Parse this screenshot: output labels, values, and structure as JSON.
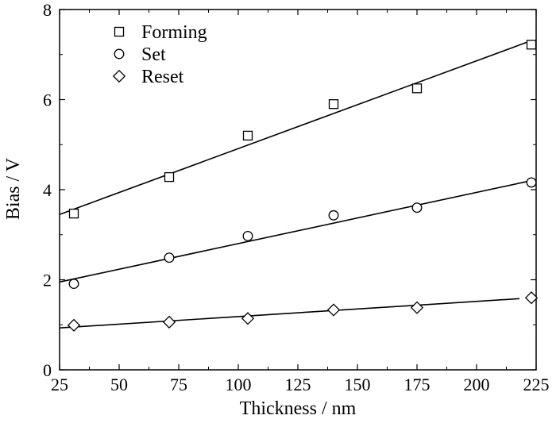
{
  "chart_data": {
    "type": "scatter",
    "xlabel": "Thickness / nm",
    "ylabel": "Bias / V",
    "xlim": [
      25,
      225
    ],
    "ylim": [
      0,
      8
    ],
    "xticks": [
      25,
      50,
      75,
      100,
      125,
      150,
      175,
      200,
      225
    ],
    "yticks": [
      0,
      2,
      4,
      6,
      8
    ],
    "grid": false,
    "legend_position": "top-left",
    "series": [
      {
        "name": "Forming",
        "marker": "square",
        "x": [
          31,
          71,
          104,
          140,
          175,
          223
        ],
        "y": [
          3.47,
          4.28,
          5.2,
          5.9,
          6.25,
          7.22
        ],
        "fit": {
          "x": [
            25,
            222
          ],
          "y": [
            3.45,
            7.29
          ]
        }
      },
      {
        "name": "Set",
        "marker": "circle",
        "x": [
          31,
          71,
          104,
          140,
          175,
          223
        ],
        "y": [
          1.91,
          2.49,
          2.97,
          3.43,
          3.6,
          4.16
        ],
        "fit": {
          "x": [
            25,
            222
          ],
          "y": [
            1.95,
            4.19
          ]
        }
      },
      {
        "name": "Reset",
        "marker": "diamond",
        "x": [
          31,
          71,
          104,
          140,
          175,
          223
        ],
        "y": [
          0.99,
          1.06,
          1.14,
          1.33,
          1.38,
          1.6
        ],
        "fit": {
          "x": [
            25,
            218
          ],
          "y": [
            0.93,
            1.58
          ]
        }
      }
    ]
  }
}
